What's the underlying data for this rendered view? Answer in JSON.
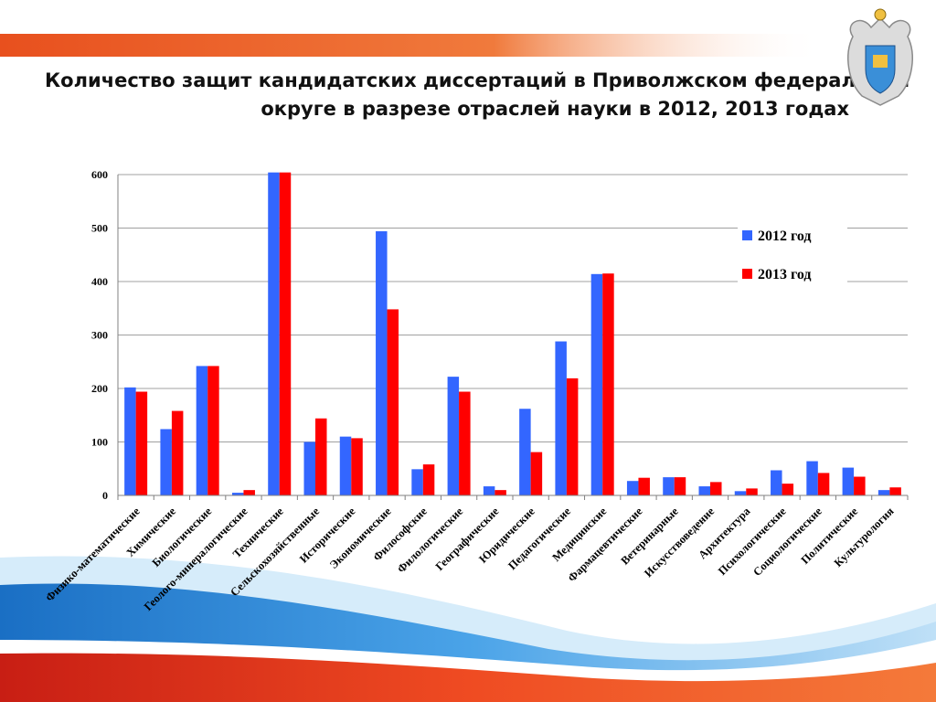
{
  "slide": {
    "title_line1": "Количество защит кандидатских диссертаций в Приволжском федеральном",
    "title_line2": "округе в разрезе отраслей науки в 2012, 2013 годах",
    "emblem": "double-headed-eagle-emblem",
    "colors": {
      "header_stripe": "#e8501e",
      "wave_blue": "#2a8ad6",
      "wave_red": "#e02a1e"
    }
  },
  "chart_data": {
    "type": "bar",
    "title": "",
    "xlabel": "",
    "ylabel": "",
    "ylim": [
      0,
      600
    ],
    "yticks": [
      0,
      100,
      200,
      300,
      400,
      500,
      600
    ],
    "grid": true,
    "legend_position": "right",
    "categories": [
      "Физико-математические",
      "Химические",
      "Биологические",
      "Геолого-минералогические",
      "Технические",
      "Сельскохозяйственные",
      "Исторические",
      "Экономические",
      "Философские",
      "Филологические",
      "Географические",
      "Юридические",
      "Педагогические",
      "Медицинские",
      "Фармацевтические",
      "Ветеринарные",
      "Искусствоведение",
      "Архитектура",
      "Психологические",
      "Социологические",
      "Политические",
      "Культурология"
    ],
    "series": [
      {
        "name": "2012 год",
        "color": "#3366ff",
        "values": [
          202,
          124,
          242,
          5,
          604,
          100,
          110,
          494,
          49,
          222,
          17,
          162,
          288,
          414,
          27,
          34,
          17,
          8,
          47,
          64,
          52,
          10
        ]
      },
      {
        "name": "2013 год",
        "color": "#ff0000",
        "values": [
          194,
          158,
          242,
          10,
          604,
          144,
          107,
          348,
          58,
          194,
          10,
          81,
          219,
          415,
          33,
          34,
          25,
          13,
          22,
          42,
          35,
          15
        ]
      }
    ]
  }
}
